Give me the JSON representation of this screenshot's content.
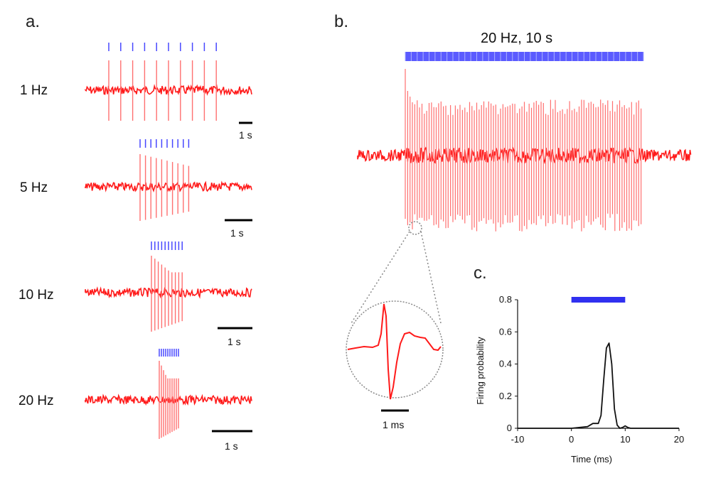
{
  "colors": {
    "trace": "#ff1a1a",
    "trace_spike": "#ff7070",
    "stim": "#4848ff",
    "stim_bar": "#3030f0",
    "curve": "#111111",
    "scalebar": "#000000",
    "dotted": "#888888"
  },
  "panel_a": {
    "label": "a.",
    "rows": [
      {
        "rate_label": "1 Hz",
        "rate_hz": 1,
        "pulses": 10,
        "scale_label": "1 s"
      },
      {
        "rate_label": "5 Hz",
        "rate_hz": 5,
        "pulses": 10,
        "scale_label": "1 s"
      },
      {
        "rate_label": "10 Hz",
        "rate_hz": 10,
        "pulses": 10,
        "scale_label": "1 s"
      },
      {
        "rate_label": "20 Hz",
        "rate_hz": 20,
        "pulses": 10,
        "scale_label": "1 s"
      }
    ]
  },
  "panel_b": {
    "label": "b.",
    "title": "20 Hz, 10 s",
    "rate_hz": 20,
    "duration_s": 10,
    "inset_scale_label": "1 ms"
  },
  "chart_data": {
    "type": "line",
    "panel_label": "c.",
    "title": "",
    "xlabel": "Time (ms)",
    "ylabel": "Firing probability",
    "xlim": [
      -10,
      20
    ],
    "ylim": [
      0,
      0.8
    ],
    "xticks": [
      -10,
      0,
      10,
      20
    ],
    "yticks": [
      0,
      0.2,
      0.4,
      0.6,
      0.8
    ],
    "xtick_labels": [
      "-10",
      "0",
      "10",
      "20"
    ],
    "ytick_labels": [
      "0",
      "0.2",
      "0.4",
      "0.6",
      "0.8"
    ],
    "stimulus_interval_ms": [
      0,
      10
    ],
    "series": [
      {
        "name": "Firing probability",
        "x": [
          -10,
          0,
          3,
          4,
          5,
          5.5,
          6,
          6.5,
          7,
          7.5,
          8,
          8.5,
          9,
          9.5,
          10,
          10.5,
          11,
          20
        ],
        "y": [
          0,
          0,
          0.01,
          0.03,
          0.03,
          0.08,
          0.3,
          0.5,
          0.53,
          0.4,
          0.12,
          0.02,
          0,
          0.005,
          0.015,
          0.005,
          0,
          0
        ]
      }
    ]
  }
}
